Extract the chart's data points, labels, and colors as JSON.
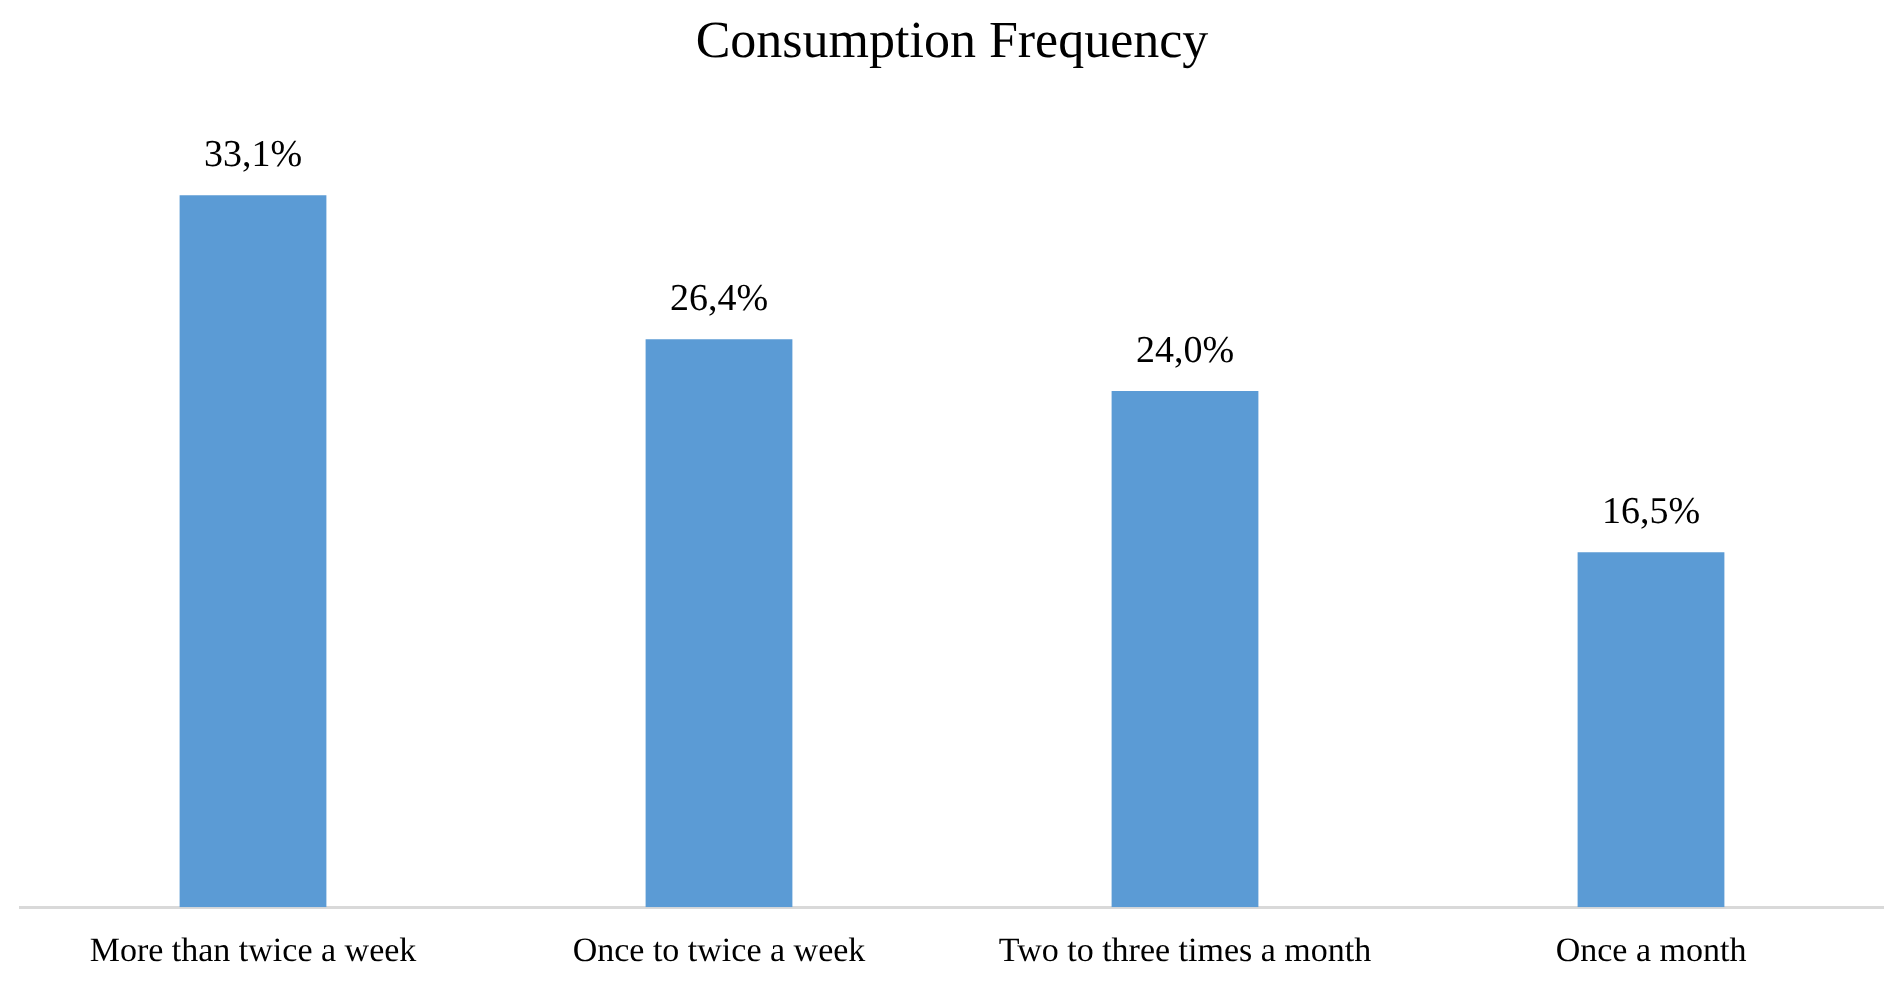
{
  "chart_data": {
    "type": "bar",
    "title": "Consumption Frequency",
    "categories": [
      "More than twice a week",
      "Once to twice a week",
      "Two to three times a month",
      "Once a month"
    ],
    "values": [
      33.1,
      26.4,
      24.0,
      16.5
    ],
    "value_labels": [
      "33,1%",
      "26,4%",
      "24,0%",
      "16,5%"
    ],
    "color": "#5b9bd5",
    "grid": false,
    "legend": false
  }
}
